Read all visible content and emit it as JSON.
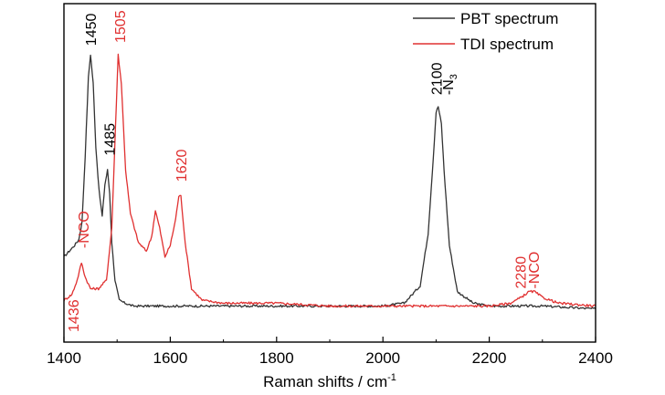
{
  "chart_data": {
    "type": "line",
    "xlabel": "Raman shifts / cm",
    "xlabel_superscript": "-1",
    "ylabel": "",
    "xlim": [
      1400,
      2400
    ],
    "ylim": [
      0,
      1
    ],
    "xticks": [
      "1400",
      "1600",
      "1800",
      "2000",
      "2200",
      "2400"
    ],
    "grid": false,
    "legend_placement": "top-right",
    "series": [
      {
        "name": "PBT spectrum",
        "color": "#333333",
        "x": [
          1400,
          1410,
          1420,
          1428,
          1434,
          1440,
          1446,
          1450,
          1455,
          1460,
          1466,
          1472,
          1477,
          1482,
          1486,
          1490,
          1496,
          1504,
          1515,
          1530,
          1600,
          1700,
          1800,
          1900,
          2000,
          2040,
          2070,
          2085,
          2095,
          2100,
          2104,
          2110,
          2115,
          2125,
          2140,
          2170,
          2200,
          2300,
          2400
        ],
        "y": [
          0.2,
          0.22,
          0.24,
          0.26,
          0.32,
          0.55,
          0.82,
          0.9,
          0.8,
          0.58,
          0.43,
          0.34,
          0.45,
          0.5,
          0.42,
          0.25,
          0.12,
          0.05,
          0.04,
          0.03,
          0.03,
          0.03,
          0.03,
          0.03,
          0.03,
          0.04,
          0.1,
          0.28,
          0.55,
          0.7,
          0.72,
          0.66,
          0.5,
          0.24,
          0.08,
          0.04,
          0.03,
          0.03,
          0.02
        ]
      },
      {
        "name": "TDI  spectrum",
        "color": "#e03030",
        "x": [
          1400,
          1415,
          1425,
          1433,
          1440,
          1450,
          1465,
          1480,
          1490,
          1497,
          1502,
          1508,
          1516,
          1525,
          1540,
          1555,
          1565,
          1572,
          1580,
          1590,
          1600,
          1610,
          1616,
          1620,
          1628,
          1640,
          1660,
          1700,
          1800,
          1900,
          2000,
          2100,
          2200,
          2240,
          2260,
          2275,
          2285,
          2300,
          2330,
          2400
        ],
        "y": [
          0.05,
          0.07,
          0.12,
          0.18,
          0.13,
          0.09,
          0.09,
          0.12,
          0.3,
          0.65,
          0.9,
          0.8,
          0.5,
          0.35,
          0.25,
          0.22,
          0.27,
          0.36,
          0.3,
          0.2,
          0.24,
          0.33,
          0.41,
          0.41,
          0.25,
          0.09,
          0.05,
          0.04,
          0.04,
          0.03,
          0.03,
          0.03,
          0.03,
          0.04,
          0.06,
          0.08,
          0.08,
          0.06,
          0.04,
          0.03
        ]
      }
    ],
    "annotations": [
      {
        "text": "1450",
        "x": 1450,
        "y": 0.93,
        "color": "#000000"
      },
      {
        "text": "1485",
        "x": 1485,
        "y": 0.55,
        "color": "#000000"
      },
      {
        "text": "2100",
        "x": 2100,
        "y": 0.76,
        "color": "#000000"
      },
      {
        "text": "-N",
        "sub": "3",
        "x": 2122,
        "y": 0.76,
        "color": "#000000"
      },
      {
        "text": "1505",
        "x": 1505,
        "y": 0.94,
        "color": "#e03030"
      },
      {
        "text": "1620",
        "x": 1620,
        "y": 0.46,
        "color": "#e03030"
      },
      {
        "text": "-NCO",
        "x": 1436,
        "y": 0.23,
        "color": "#e03030"
      },
      {
        "text": "1436",
        "x": 1417,
        "y": -0.06,
        "color": "#e03030"
      },
      {
        "text": "2280",
        "x": 2258,
        "y": 0.09,
        "color": "#e03030"
      },
      {
        "text": "-NCO",
        "x": 2283,
        "y": 0.09,
        "color": "#e03030"
      }
    ]
  }
}
